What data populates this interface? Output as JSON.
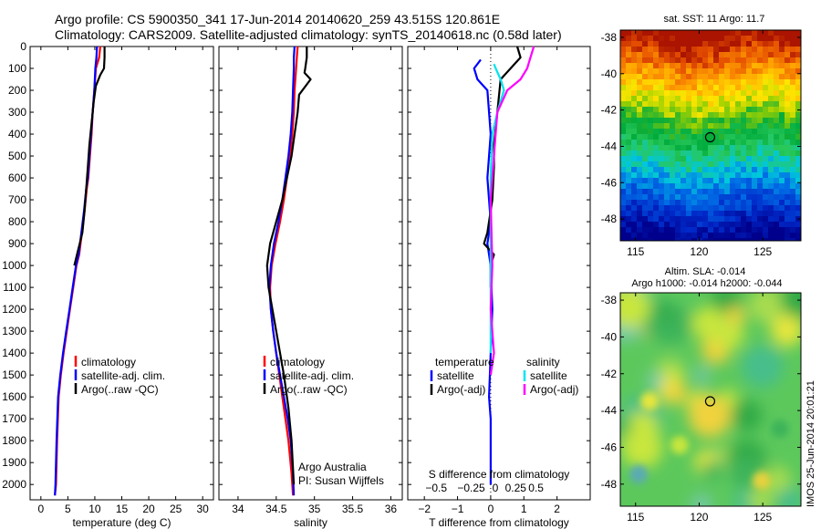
{
  "title": {
    "line1": "Argo profile: CS 5900350_341 17-Jun-2014 20140620_259 43.515S 120.861E",
    "line2": "Climatology: CARS2009. Satellite-adjusted climatology: synTS_20140618.nc (0.58d later)"
  },
  "colors": {
    "climatology": "#ff0000",
    "satellite": "#0000ff",
    "argo": "#000000",
    "salinity_satellite": "#00e5ee",
    "salinity_argo": "#ff00ff"
  },
  "chart_data": [
    {
      "id": "temperature",
      "type": "line",
      "xlabel": "temperature (deg C)",
      "ylabel": "",
      "xlim": [
        -2,
        32
      ],
      "ylim": [
        2070,
        0
      ],
      "xticks": [
        0,
        5,
        10,
        15,
        20,
        25,
        30
      ],
      "xtick_labels": [
        "0",
        "5",
        "10",
        "15",
        "20",
        "25",
        "30"
      ],
      "yticks": [
        0,
        100,
        200,
        300,
        400,
        500,
        600,
        700,
        800,
        900,
        1000,
        1100,
        1200,
        1300,
        1400,
        1500,
        1600,
        1700,
        1800,
        1900,
        2000
      ],
      "legend": [
        "climatology",
        "satellite-adj. clim.",
        "Argo(..raw -QC)"
      ],
      "series": [
        {
          "name": "climatology",
          "color": "#ff0000",
          "x": [
            11.0,
            10.8,
            10.2,
            9.9,
            9.6,
            9.4,
            9.1,
            8.8,
            8.5,
            8.1,
            7.6,
            7.1,
            6.6,
            6.0,
            5.4,
            4.8,
            4.2,
            3.7,
            3.3,
            3.0,
            2.8,
            2.6
          ],
          "y": [
            0,
            50,
            100,
            200,
            300,
            400,
            500,
            600,
            650,
            750,
            850,
            950,
            1000,
            1100,
            1200,
            1300,
            1400,
            1500,
            1600,
            1800,
            2000,
            2050
          ]
        },
        {
          "name": "satellite-adj. clim.",
          "color": "#0000ff",
          "x": [
            10.4,
            10.3,
            10.1,
            9.9,
            9.6,
            9.3,
            9.0,
            8.7,
            8.4,
            8.0,
            7.5,
            7.0,
            6.5,
            5.9,
            5.3,
            4.7,
            4.1,
            3.6,
            3.2,
            2.9,
            2.7,
            2.6
          ],
          "y": [
            0,
            50,
            100,
            200,
            300,
            400,
            500,
            600,
            650,
            750,
            850,
            950,
            1000,
            1100,
            1200,
            1300,
            1400,
            1500,
            1600,
            1800,
            2000,
            2050
          ]
        },
        {
          "name": "Argo(..raw -QC)",
          "color": "#000000",
          "x": [
            11.8,
            11.8,
            11.7,
            11.0,
            10.2,
            9.8,
            9.4,
            9.0,
            8.7,
            8.4,
            8.1,
            7.7,
            7.2,
            6.7,
            6.2
          ],
          "y": [
            0,
            50,
            100,
            130,
            180,
            250,
            350,
            450,
            550,
            650,
            750,
            850,
            900,
            950,
            1000
          ]
        }
      ],
      "annotations": []
    },
    {
      "id": "salinity",
      "type": "line",
      "xlabel": "salinity",
      "ylabel": "",
      "xlim": [
        33.75,
        36.15
      ],
      "ylim": [
        2070,
        0
      ],
      "xticks": [
        34,
        34.5,
        35,
        35.5,
        36
      ],
      "xtick_labels": [
        "34",
        "34.5",
        "35",
        "35.5",
        "36"
      ],
      "yticks": [
        0,
        100,
        200,
        300,
        400,
        500,
        600,
        700,
        800,
        900,
        1000,
        1100,
        1200,
        1300,
        1400,
        1500,
        1600,
        1700,
        1800,
        1900,
        2000
      ],
      "legend": [
        "climatology",
        "satellite-adj. clim.",
        "Argo(..raw -QC)"
      ],
      "series": [
        {
          "name": "climatology",
          "color": "#ff0000",
          "x": [
            34.78,
            34.77,
            34.76,
            34.74,
            34.73,
            34.71,
            34.68,
            34.64,
            34.6,
            34.55,
            34.49,
            34.44,
            34.42,
            34.43,
            34.46,
            34.5,
            34.54,
            34.58,
            34.62,
            34.66,
            34.7,
            34.72
          ],
          "y": [
            0,
            50,
            100,
            200,
            300,
            400,
            500,
            600,
            700,
            800,
            900,
            1000,
            1100,
            1200,
            1300,
            1400,
            1500,
            1600,
            1700,
            1800,
            1950,
            2050
          ]
        },
        {
          "name": "satellite-adj. clim.",
          "color": "#0000ff",
          "x": [
            34.74,
            34.73,
            34.73,
            34.72,
            34.71,
            34.69,
            34.66,
            34.62,
            34.58,
            34.53,
            34.47,
            34.43,
            34.41,
            34.43,
            34.46,
            34.5,
            34.55,
            34.6,
            34.65,
            34.69,
            34.72,
            34.73
          ],
          "y": [
            0,
            50,
            100,
            200,
            300,
            400,
            500,
            600,
            700,
            800,
            900,
            1000,
            1100,
            1200,
            1300,
            1400,
            1500,
            1600,
            1700,
            1800,
            1950,
            2050
          ]
        },
        {
          "name": "Argo(..raw -QC)",
          "color": "#000000",
          "x": [
            34.9,
            34.9,
            34.88,
            34.87,
            34.95,
            34.8,
            34.78,
            34.74,
            34.7,
            34.64,
            34.58,
            34.5,
            34.42,
            34.38,
            34.4,
            34.45,
            34.5,
            34.55,
            34.6,
            34.66,
            34.7,
            34.73
          ],
          "y": [
            0,
            50,
            100,
            120,
            150,
            220,
            300,
            400,
            500,
            600,
            700,
            800,
            900,
            1000,
            1100,
            1200,
            1300,
            1400,
            1500,
            1650,
            1800,
            2000
          ]
        }
      ],
      "annotations": [
        "Argo Australia",
        "PI: Susan Wijffels"
      ]
    },
    {
      "id": "difference",
      "type": "line",
      "xlabel": "T difference from climatology",
      "xlabel_top": "S difference from climatology",
      "ylabel": "",
      "xlim": [
        -2.5,
        3.0
      ],
      "ylim": [
        2070,
        0
      ],
      "xticks": [
        -2,
        -1,
        0,
        1,
        2
      ],
      "xtick_labels": [
        "−2",
        "−1",
        "0",
        "1",
        "2"
      ],
      "s_tick_labels": [
        "−0.5",
        "−0.25",
        "0",
        "0.25",
        "0.5"
      ],
      "yticks": [
        0,
        100,
        200,
        300,
        400,
        500,
        600,
        700,
        800,
        900,
        1000,
        1100,
        1200,
        1300,
        1400,
        1500,
        1600,
        1700,
        1800,
        1900,
        2000
      ],
      "legend_temperature_title": "temperature",
      "legend_salinity_title": "salinity",
      "legend_temperature": [
        "satellite",
        "Argo(-adj)"
      ],
      "legend_salinity": [
        "satellite",
        "Argo(-adj)"
      ],
      "series": [
        {
          "name": "temperature satellite",
          "color": "#0000ff",
          "x": [
            -0.3,
            -0.5,
            -0.4,
            -0.1,
            0.0,
            -0.1,
            0.0,
            -0.1,
            0.0,
            0.05,
            0.0,
            -0.05,
            0.0,
            0.0,
            0.0,
            0.0
          ],
          "y": [
            60,
            100,
            150,
            200,
            400,
            600,
            800,
            900,
            1000,
            1200,
            1400,
            1600,
            1700,
            1800,
            1900,
            2000
          ]
        },
        {
          "name": "temperature Argo(-adj)",
          "color": "#000000",
          "x": [
            0.8,
            0.9,
            0.6,
            0.3,
            0.2,
            0.1,
            0.1,
            0.05,
            -0.1,
            -0.2,
            0.1,
            0.0,
            0.0
          ],
          "y": [
            0,
            50,
            100,
            150,
            300,
            450,
            550,
            700,
            850,
            900,
            950,
            1000,
            1100
          ]
        },
        {
          "name": "salinity satellite",
          "color": "#00e5ee",
          "x": [
            0.1,
            0.15,
            0.3,
            0.4,
            0.2,
            0.05,
            0.0,
            0.0,
            0.0,
            0.0,
            0.0
          ],
          "y": [
            80,
            100,
            150,
            200,
            300,
            400,
            600,
            800,
            1000,
            1200,
            1400
          ]
        },
        {
          "name": "salinity Argo(-adj)",
          "color": "#ff00ff",
          "x": [
            1.3,
            1.2,
            1.1,
            0.9,
            0.5,
            0.2,
            0.1,
            0.0,
            0.05,
            0.0,
            0.1,
            0.0
          ],
          "y": [
            0,
            50,
            100,
            150,
            200,
            300,
            500,
            700,
            1000,
            1200,
            1400,
            1500
          ]
        }
      ],
      "annotations": []
    }
  ],
  "maps": [
    {
      "id": "sst-map",
      "title": "sat. SST: 11  Argo: 11.7",
      "subtitle": "",
      "xlim": [
        113.8,
        128
      ],
      "ylim": [
        -49.2,
        -37.6
      ],
      "xticks": [
        115,
        120,
        125
      ],
      "xtick_labels": [
        "115",
        "120",
        "125"
      ],
      "yticks": [
        -38,
        -40,
        -42,
        -44,
        -46,
        -48
      ],
      "ytick_labels": [
        "-38",
        "-40",
        "-42",
        "-44",
        "-46",
        "-48"
      ],
      "marker": {
        "lon": 120.86,
        "lat": -43.5
      }
    },
    {
      "id": "sla-map",
      "title": "Altim. SLA: -0.014",
      "subtitle": "Argo h1000: -0.014 h2000: -0.044",
      "xlim": [
        113.8,
        128
      ],
      "ylim": [
        -49.2,
        -37.6
      ],
      "xticks": [
        115,
        120,
        125
      ],
      "xtick_labels": [
        "115",
        "120",
        "125"
      ],
      "yticks": [
        -38,
        -40,
        -42,
        -44,
        -46,
        -48
      ],
      "ytick_labels": [
        "-38",
        "-40",
        "-42",
        "-44",
        "-46",
        "-48"
      ],
      "marker": {
        "lon": 120.86,
        "lat": -43.5
      }
    }
  ],
  "side_note": "IMOS 25-Jun-2014 20:01:21"
}
